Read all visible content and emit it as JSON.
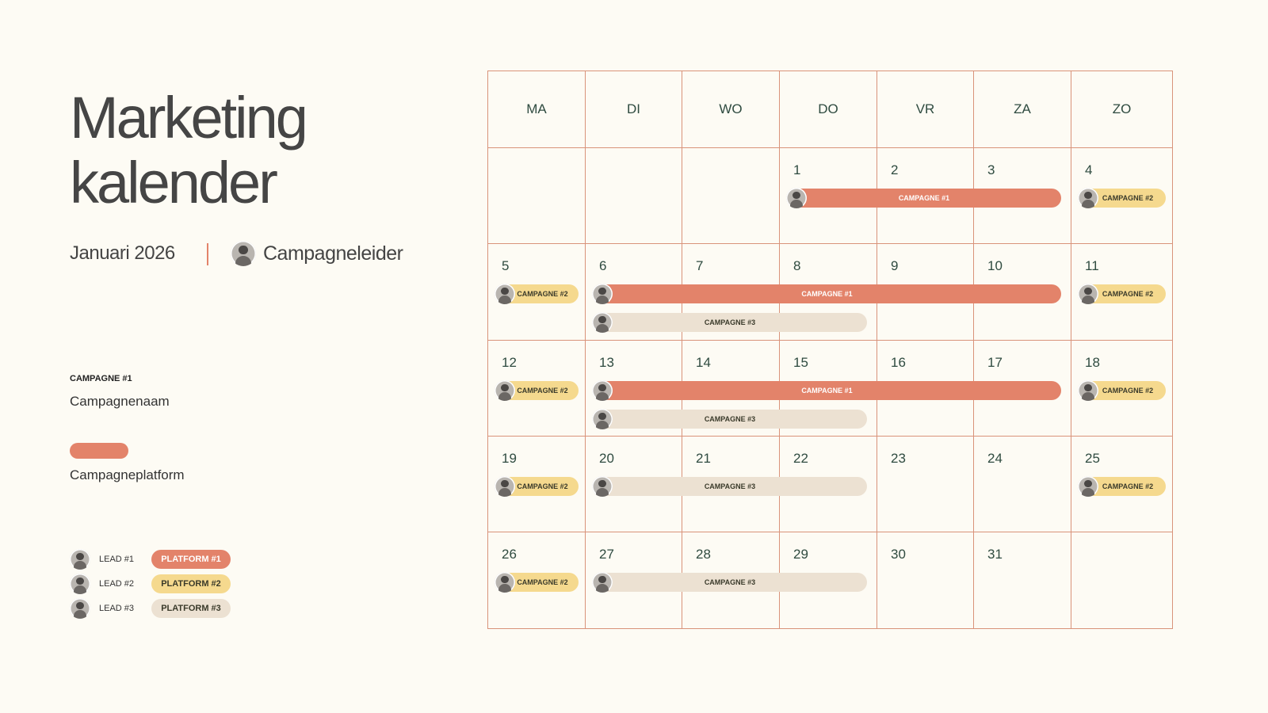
{
  "header": {
    "title": [
      "Marketing",
      "kalender"
    ],
    "month": "Januari 2026",
    "leader": "Campagneleider"
  },
  "key": {
    "campaign_label": "CAMPAGNE #1",
    "campaign_name": "Campagnenaam",
    "platform_name": "Campagneplatform"
  },
  "leads": [
    {
      "lead": "LEAD #1",
      "platform": "PLATFORM #1",
      "color": "#e3836a",
      "text_color": "#ffffff"
    },
    {
      "lead": "LEAD #2",
      "platform": "PLATFORM #2",
      "color": "#f5d98e",
      "text_color": "#3a3a2a"
    },
    {
      "lead": "LEAD #3",
      "platform": "PLATFORM #3",
      "color": "#ece1d2",
      "text_color": "#3a3a2a"
    }
  ],
  "calendar": {
    "weekdays": [
      "MA",
      "DI",
      "WO",
      "DO",
      "VR",
      "ZA",
      "ZO"
    ],
    "weeks": [
      [
        null,
        null,
        null,
        1,
        2,
        3,
        4
      ],
      [
        5,
        6,
        7,
        8,
        9,
        10,
        11
      ],
      [
        12,
        13,
        14,
        15,
        16,
        17,
        18
      ],
      [
        19,
        20,
        21,
        22,
        23,
        24,
        25
      ],
      [
        26,
        27,
        28,
        29,
        30,
        31,
        null
      ]
    ],
    "events": [
      {
        "label": "CAMPAGNE #1",
        "lead": 0,
        "from": 1,
        "to": 3
      },
      {
        "label": "CAMPAGNE #2",
        "lead": 1,
        "from": 4,
        "to": 4
      },
      {
        "label": "CAMPAGNE #2",
        "lead": 1,
        "from": 5,
        "to": 5
      },
      {
        "label": "CAMPAGNE #1",
        "lead": 0,
        "from": 6,
        "to": 10
      },
      {
        "label": "CAMPAGNE #2",
        "lead": 1,
        "from": 11,
        "to": 11
      },
      {
        "label": "CAMPAGNE #3",
        "lead": 2,
        "from": 6,
        "to": 8
      },
      {
        "label": "CAMPAGNE #2",
        "lead": 1,
        "from": 12,
        "to": 12
      },
      {
        "label": "CAMPAGNE #1",
        "lead": 0,
        "from": 13,
        "to": 17
      },
      {
        "label": "CAMPAGNE #2",
        "lead": 1,
        "from": 18,
        "to": 18
      },
      {
        "label": "CAMPAGNE #3",
        "lead": 2,
        "from": 13,
        "to": 15
      },
      {
        "label": "CAMPAGNE #2",
        "lead": 1,
        "from": 19,
        "to": 19
      },
      {
        "label": "CAMPAGNE #3",
        "lead": 2,
        "from": 20,
        "to": 22
      },
      {
        "label": "CAMPAGNE #2",
        "lead": 1,
        "from": 25,
        "to": 25
      },
      {
        "label": "CAMPAGNE #2",
        "lead": 1,
        "from": 26,
        "to": 26
      },
      {
        "label": "CAMPAGNE #3",
        "lead": 2,
        "from": 27,
        "to": 29
      }
    ]
  }
}
